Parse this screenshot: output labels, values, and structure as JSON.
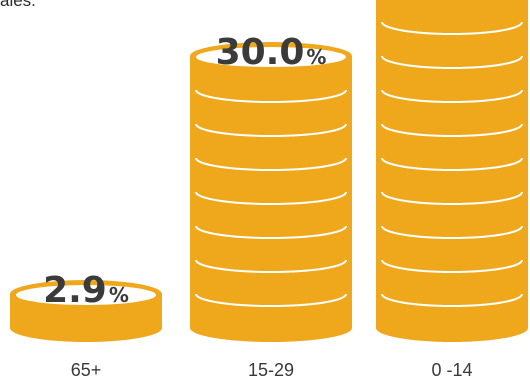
{
  "caption": "ales.",
  "colors": {
    "coin": "#EFA81C",
    "line": "#ffffff",
    "label": "#3b3b3b"
  },
  "chart_data": {
    "type": "bar",
    "categories": [
      "65+",
      "15-29",
      "0 -14"
    ],
    "values": [
      2.9,
      30.0,
      39.7
    ],
    "value_labels": [
      "2.9",
      "30.0",
      "39.7"
    ],
    "unit": "%",
    "title": "",
    "xlabel": "",
    "ylabel": "",
    "grid": false
  }
}
